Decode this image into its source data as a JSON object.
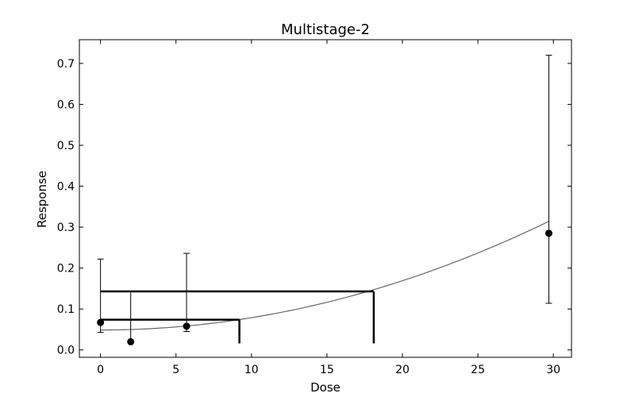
{
  "chart_data": {
    "type": "scatter",
    "title": "Multistage-2",
    "xlabel": "Dose",
    "ylabel": "Response",
    "xlim": [
      -1.4,
      31.2
    ],
    "ylim": [
      -0.018,
      0.758
    ],
    "xticks": [
      0,
      5,
      10,
      15,
      20,
      25,
      30
    ],
    "yticks": [
      0.0,
      0.1,
      0.2,
      0.3,
      0.4,
      0.5,
      0.6,
      0.7
    ],
    "points": [
      {
        "x": 0,
        "y": 0.067,
        "lower": 0.043,
        "upper": 0.222
      },
      {
        "x": 2,
        "y": 0.02,
        "lower": 0.02,
        "upper": 0.143
      },
      {
        "x": 5.7,
        "y": 0.058,
        "lower": 0.045,
        "upper": 0.236
      },
      {
        "x": 29.7,
        "y": 0.285,
        "lower": 0.114,
        "upper": 0.72
      }
    ],
    "curve": {
      "a": 0.0487,
      "b": 0.0,
      "c": 0.000301,
      "x_start": 0,
      "x_end": 29.7
    },
    "bmd_lines": [
      {
        "response": 0.074,
        "x_from": 0,
        "x_to": 9.2,
        "drop_to": 0.016
      },
      {
        "response": 0.143,
        "x_from": 0,
        "x_to": 18.1,
        "drop_to": 0.016
      }
    ],
    "grid": false,
    "colors": {
      "points": "#000000",
      "curve": "#666666",
      "bmd": "#000000"
    }
  }
}
